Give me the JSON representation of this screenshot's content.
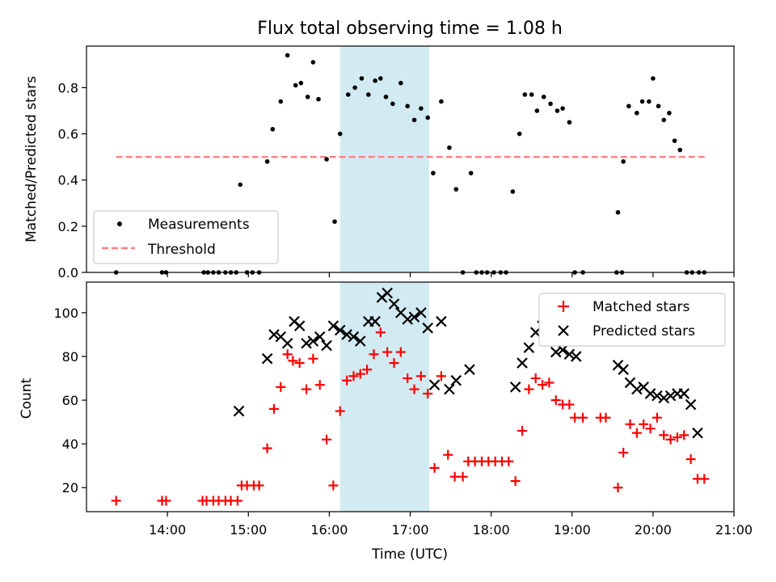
{
  "title": "Flux total observing time = 1.08 h",
  "colors": {
    "threshold": "#ff7f7f",
    "span": "#add8e6",
    "matched": "#ff0000",
    "predicted": "#000000",
    "measurement": "#000000"
  },
  "chart_data": [
    {
      "type": "scatter",
      "ylabel": "Matched/Predicted stars",
      "xlim": [
        "13:00",
        "21:00"
      ],
      "ylim": [
        0,
        0.98
      ],
      "yticks": [
        "0.0",
        "0.2",
        "0.4",
        "0.6",
        "0.8"
      ],
      "highlight_span": {
        "start": "16:08",
        "end": "17:14"
      },
      "threshold": {
        "y": 0.5,
        "x_from": "13:22",
        "x_to": "20:40"
      },
      "legend": {
        "position": "lower-left",
        "entries": [
          "Measurements",
          "Threshold"
        ]
      },
      "series": [
        {
          "name": "Measurements",
          "x": [
            "13:22",
            "13:56",
            "13:59",
            "14:27",
            "14:30",
            "14:34",
            "14:38",
            "14:43",
            "14:47",
            "14:51",
            "14:59",
            "15:03",
            "15:08",
            "14:54",
            "15:14",
            "15:18",
            "15:24",
            "15:29",
            "15:35",
            "15:39",
            "15:44",
            "15:48",
            "15:52",
            "15:58",
            "16:04",
            "16:08",
            "16:14",
            "16:19",
            "16:24",
            "16:29",
            "16:34",
            "16:38",
            "16:42",
            "16:47",
            "16:53",
            "16:58",
            "17:03",
            "17:08",
            "17:13",
            "17:17",
            "17:23",
            "17:29",
            "17:34",
            "17:39",
            "17:45",
            "17:49",
            "17:53",
            "17:57",
            "18:02",
            "18:07",
            "18:11",
            "18:16",
            "18:21",
            "18:25",
            "18:30",
            "18:34",
            "18:39",
            "18:44",
            "18:49",
            "18:53",
            "18:58",
            "19:02",
            "19:08",
            "19:33",
            "19:37",
            "19:34",
            "19:38",
            "19:42",
            "19:48",
            "19:52",
            "19:57",
            "20:00",
            "20:04",
            "20:08",
            "20:12",
            "20:16",
            "20:20",
            "20:25",
            "20:29",
            "20:34",
            "20:38"
          ],
          "y": [
            0,
            0,
            0,
            0,
            0,
            0,
            0,
            0,
            0,
            0,
            0,
            0,
            0,
            0.38,
            0.48,
            0.62,
            0.74,
            0.94,
            0.81,
            0.82,
            0.76,
            0.91,
            0.75,
            0.49,
            0.22,
            0.6,
            0.77,
            0.8,
            0.84,
            0.77,
            0.83,
            0.84,
            0.76,
            0.73,
            0.82,
            0.72,
            0.66,
            0.71,
            0.67,
            0.43,
            0.74,
            0.54,
            0.36,
            0,
            0.43,
            0,
            0,
            0,
            0,
            0,
            0,
            0.35,
            0.6,
            0.77,
            0.77,
            0.7,
            0.76,
            0.73,
            0.7,
            0.71,
            0.65,
            0,
            0,
            0,
            0,
            0.26,
            0.48,
            0.72,
            0.69,
            0.74,
            0.74,
            0.84,
            0.72,
            0.66,
            0.69,
            0.57,
            0.53,
            0,
            0,
            0.0,
            0.0
          ]
        }
      ]
    },
    {
      "type": "scatter",
      "xlabel": "Time (UTC)",
      "ylabel": "Count",
      "xlim": [
        "13:00",
        "21:00"
      ],
      "ylim": [
        9,
        114
      ],
      "yticks": [
        "20",
        "40",
        "60",
        "80",
        "100"
      ],
      "xticks": [
        "14:00",
        "15:00",
        "16:00",
        "17:00",
        "18:00",
        "19:00",
        "20:00",
        "21:00"
      ],
      "highlight_span": {
        "start": "16:08",
        "end": "17:14"
      },
      "legend": {
        "position": "top-right",
        "entries": [
          "Matched stars",
          "Predicted stars"
        ]
      },
      "series": [
        {
          "name": "Matched stars",
          "x": [
            "13:22",
            "13:56",
            "13:59",
            "14:26",
            "14:29",
            "14:34",
            "14:38",
            "14:43",
            "14:47",
            "14:52",
            "14:55",
            "14:59",
            "15:04",
            "15:08",
            "15:14",
            "15:19",
            "15:24",
            "15:29",
            "15:33",
            "15:38",
            "15:43",
            "15:48",
            "15:53",
            "15:58",
            "16:03",
            "16:08",
            "16:13",
            "16:18",
            "16:23",
            "16:28",
            "16:33",
            "16:38",
            "16:43",
            "16:48",
            "16:53",
            "16:58",
            "17:03",
            "17:08",
            "17:13",
            "17:18",
            "17:23",
            "17:28",
            "17:33",
            "17:39",
            "17:43",
            "17:48",
            "17:53",
            "17:58",
            "18:03",
            "18:08",
            "18:13",
            "18:18",
            "18:23",
            "18:28",
            "18:33",
            "18:38",
            "18:43",
            "18:48",
            "18:53",
            "18:58",
            "19:02",
            "19:08",
            "19:21",
            "19:25",
            "19:34",
            "19:38",
            "19:43",
            "19:48",
            "19:53",
            "19:58",
            "20:03",
            "20:08",
            "20:13",
            "20:18",
            "20:23",
            "20:28",
            "20:33",
            "20:38"
          ],
          "y": [
            14,
            14,
            14,
            14,
            14,
            14,
            14,
            14,
            14,
            14,
            21,
            21,
            21,
            21,
            38,
            56,
            66,
            81,
            78,
            77,
            65,
            79,
            67,
            42,
            21,
            55,
            69,
            71,
            72,
            74,
            81,
            91,
            82,
            77,
            82,
            70,
            65,
            71,
            63,
            29,
            71,
            35,
            25,
            25,
            32,
            32,
            32,
            32,
            32,
            32,
            32,
            23,
            46,
            65,
            70,
            67,
            68,
            60,
            58,
            58,
            52,
            52,
            52,
            52,
            20,
            36,
            49,
            45,
            49,
            47,
            52,
            44,
            42,
            43,
            44,
            33,
            24,
            24
          ]
        },
        {
          "name": "Predicted stars",
          "x": [
            "14:53",
            "15:14",
            "15:19",
            "15:24",
            "15:29",
            "15:34",
            "15:38",
            "15:43",
            "15:48",
            "15:53",
            "15:58",
            "16:03",
            "16:08",
            "16:13",
            "16:18",
            "16:23",
            "16:29",
            "16:34",
            "16:39",
            "16:43",
            "16:48",
            "16:53",
            "16:58",
            "17:03",
            "17:08",
            "17:13",
            "17:18",
            "17:23",
            "17:29",
            "17:34",
            "17:44",
            "18:18",
            "18:23",
            "18:28",
            "18:33",
            "18:38",
            "18:43",
            "18:48",
            "18:53",
            "18:58",
            "19:03",
            "19:34",
            "19:38",
            "19:43",
            "19:48",
            "19:53",
            "19:58",
            "20:03",
            "20:08",
            "20:13",
            "20:18",
            "20:23",
            "20:28",
            "20:33"
          ],
          "y": [
            55,
            79,
            90,
            89,
            86,
            96,
            94,
            86,
            87,
            89,
            85,
            94,
            92,
            90,
            89,
            87,
            96,
            96,
            107,
            109,
            104,
            100,
            97,
            98,
            100,
            93,
            67,
            96,
            65,
            69,
            74,
            66,
            77,
            84,
            91,
            94,
            89,
            82,
            83,
            81,
            80,
            76,
            74,
            68,
            65,
            66,
            63,
            62,
            61,
            62,
            63,
            63,
            58,
            45
          ]
        }
      ]
    }
  ]
}
